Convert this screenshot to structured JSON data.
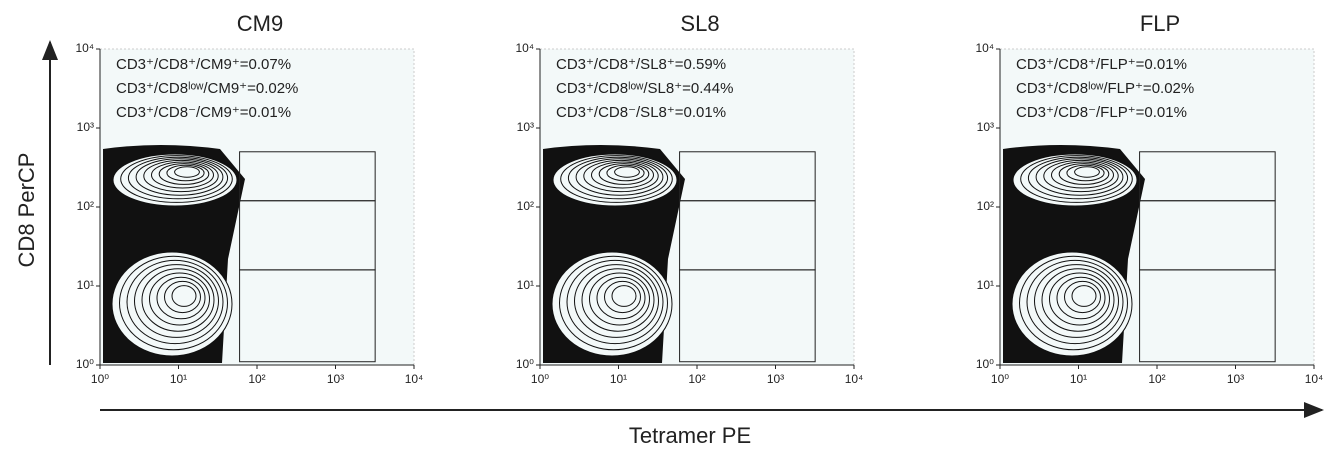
{
  "x_label": "Tetramer PE",
  "y_label": "CD8 PerCP",
  "chart_data": [
    {
      "type": "contour",
      "title": "CM9",
      "annotations": [
        "CD3⁺/CD8⁺/CM9⁺=0.07%",
        "CD3⁺/CD8ˡᵒʷ/CM9⁺=0.02%",
        "CD3⁺/CD8⁻/CM9⁺=0.01%"
      ],
      "xscale": "log",
      "yscale": "log",
      "xlim": [
        1,
        10000
      ],
      "ylim": [
        1,
        10000
      ],
      "xticks": [
        {
          "value": 1,
          "label": "10⁰"
        },
        {
          "value": 10,
          "label": "10¹"
        },
        {
          "value": 100,
          "label": "10²"
        },
        {
          "value": 1000,
          "label": "10³"
        },
        {
          "value": 10000,
          "label": "10⁴"
        }
      ],
      "yticks": [
        {
          "value": 1,
          "label": "10⁰"
        },
        {
          "value": 10,
          "label": "10¹"
        },
        {
          "value": 100,
          "label": "10²"
        },
        {
          "value": 1000,
          "label": "10³"
        },
        {
          "value": 10000,
          "label": "10⁴"
        }
      ],
      "gates": [
        {
          "x": [
            60,
            3200
          ],
          "y": [
            120,
            500
          ]
        },
        {
          "x": [
            60,
            3200
          ],
          "y": [
            16,
            120
          ]
        },
        {
          "x": [
            60,
            3200
          ],
          "y": [
            1.1,
            16
          ]
        }
      ]
    },
    {
      "type": "contour",
      "title": "SL8",
      "annotations": [
        "CD3⁺/CD8⁺/SL8⁺=0.59%",
        "CD3⁺/CD8ˡᵒʷ/SL8⁺=0.44%",
        "CD3⁺/CD8⁻/SL8⁺=0.01%"
      ],
      "xscale": "log",
      "yscale": "log",
      "xlim": [
        1,
        10000
      ],
      "ylim": [
        1,
        10000
      ],
      "xticks": [
        {
          "value": 1,
          "label": "10⁰"
        },
        {
          "value": 10,
          "label": "10¹"
        },
        {
          "value": 100,
          "label": "10²"
        },
        {
          "value": 1000,
          "label": "10³"
        },
        {
          "value": 10000,
          "label": "10⁴"
        }
      ],
      "yticks": [
        {
          "value": 1,
          "label": "10⁰"
        },
        {
          "value": 10,
          "label": "10¹"
        },
        {
          "value": 100,
          "label": "10²"
        },
        {
          "value": 1000,
          "label": "10³"
        },
        {
          "value": 10000,
          "label": "10⁴"
        }
      ],
      "gates": [
        {
          "x": [
            60,
            3200
          ],
          "y": [
            120,
            500
          ]
        },
        {
          "x": [
            60,
            3200
          ],
          "y": [
            16,
            120
          ]
        },
        {
          "x": [
            60,
            3200
          ],
          "y": [
            1.1,
            16
          ]
        }
      ]
    },
    {
      "type": "contour",
      "title": "FLP",
      "annotations": [
        "CD3⁺/CD8⁺/FLP⁺=0.01%",
        "CD3⁺/CD8ˡᵒʷ/FLP⁺=0.02%",
        "CD3⁺/CD8⁻/FLP⁺=0.01%"
      ],
      "xscale": "log",
      "yscale": "log",
      "xlim": [
        1,
        10000
      ],
      "ylim": [
        1,
        10000
      ],
      "xticks": [
        {
          "value": 1,
          "label": "10⁰"
        },
        {
          "value": 10,
          "label": "10¹"
        },
        {
          "value": 100,
          "label": "10²"
        },
        {
          "value": 1000,
          "label": "10³"
        },
        {
          "value": 10000,
          "label": "10⁴"
        }
      ],
      "yticks": [
        {
          "value": 1,
          "label": "10⁰"
        },
        {
          "value": 10,
          "label": "10¹"
        },
        {
          "value": 100,
          "label": "10²"
        },
        {
          "value": 1000,
          "label": "10³"
        },
        {
          "value": 10000,
          "label": "10⁴"
        }
      ],
      "gates": [
        {
          "x": [
            60,
            3200
          ],
          "y": [
            120,
            500
          ]
        },
        {
          "x": [
            60,
            3200
          ],
          "y": [
            16,
            120
          ]
        },
        {
          "x": [
            60,
            3200
          ],
          "y": [
            1.1,
            16
          ]
        }
      ]
    }
  ]
}
